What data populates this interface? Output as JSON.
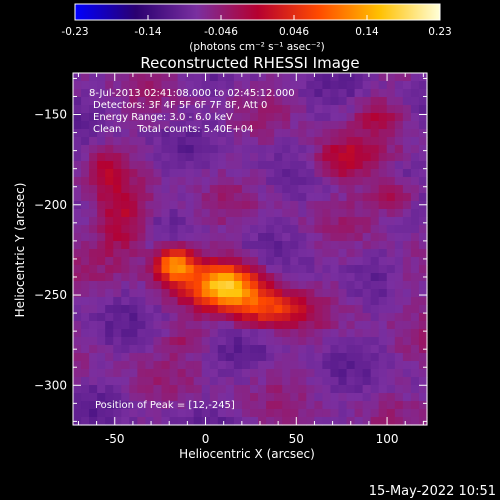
{
  "chart_data": {
    "type": "heatmap",
    "title": "Reconstructed RHESSI Image",
    "xlabel": "Heliocentric X (arcsec)",
    "ylabel": "Heliocentric Y (arcsec)",
    "xlim": [
      -73,
      122
    ],
    "ylim": [
      -322,
      -127
    ],
    "xticks": [
      -50,
      0,
      50,
      100
    ],
    "yticks": [
      -150,
      -200,
      -250,
      -300
    ],
    "colorbar": {
      "min": -0.23,
      "max": 0.23,
      "ticks": [
        "-0.23",
        "-0.14",
        "-0.046",
        "0.046",
        "0.14",
        "0.23"
      ],
      "unit_label": "(photons cm⁻² s⁻¹ asec⁻²)",
      "colormap": [
        "#0000ff",
        "#2a0070",
        "#7a2fa0",
        "#b50030",
        "#ff4a00",
        "#ffc000",
        "#ffffd8"
      ]
    },
    "annotations": [
      "8-Jul-2013 02:41:08.000 to 02:45:12.000",
      "Detectors: 3F 4F 5F 6F 7F 8F, Att 0",
      "Energy Range: 3.0 - 6.0 keV",
      "Clean     Total counts: 5.40E+04",
      "Position of Peak = [12,-245]"
    ],
    "peak": [
      12,
      -245
    ],
    "sources": [
      {
        "x": 12,
        "y": -245,
        "sx": 14,
        "sy": 9,
        "amp": 0.23
      },
      {
        "x": -17,
        "y": -233,
        "sx": 8,
        "sy": 7,
        "amp": 0.19
      },
      {
        "x": 35,
        "y": -258,
        "sx": 14,
        "sy": 7,
        "amp": 0.12
      },
      {
        "x": -45,
        "y": -210,
        "sx": 10,
        "sy": 14,
        "amp": 0.08
      },
      {
        "x": -55,
        "y": -180,
        "sx": 6,
        "sy": 9,
        "amp": 0.05
      },
      {
        "x": 75,
        "y": -175,
        "sx": 12,
        "sy": 8,
        "amp": 0.09
      },
      {
        "x": 105,
        "y": -195,
        "sx": 10,
        "sy": 6,
        "amp": 0.07
      },
      {
        "x": 95,
        "y": -150,
        "sx": 8,
        "sy": 6,
        "amp": 0.05
      },
      {
        "x": -10,
        "y": -275,
        "sx": 10,
        "sy": 5,
        "amp": 0.04
      },
      {
        "x": 110,
        "y": -240,
        "sx": 7,
        "sy": 10,
        "amp": 0.035
      }
    ]
  },
  "timestamp": "15-May-2022 10:51"
}
